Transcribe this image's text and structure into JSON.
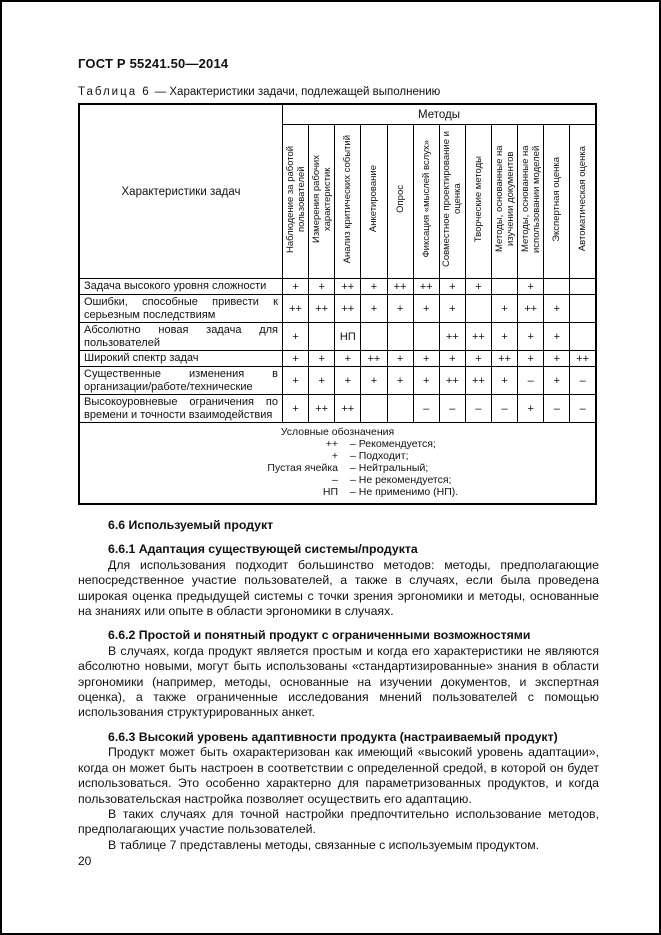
{
  "page": {
    "header": "ГОСТ Р 55241.50—2014",
    "page_number": "20"
  },
  "table": {
    "caption_label": "Таблица 6",
    "caption_rest": "— Характеристики задачи, подлежащей выполнению",
    "corner_header": "Характеристики задач",
    "methods_header": "Методы",
    "columns": [
      "Наблюдение за работой пользователей",
      "Измерения рабочих характеристик",
      "Анализ критических событий",
      "Анкетирование",
      "Опрос",
      "Фиксация «мыслей вслух»",
      "Совместное проектирование и оценка",
      "Творческие методы",
      "Методы, основанные на изучении документов",
      "Методы, основанные на использовании моделей",
      "Экспертная оценка",
      "Автоматическая оценка"
    ],
    "rows": [
      {
        "label": "Задача высокого уровня сложности",
        "values": [
          "+",
          "+",
          "++",
          "+",
          "++",
          "++",
          "+",
          "+",
          "",
          "+",
          "",
          ""
        ]
      },
      {
        "label": "Ошибки, способные привести к серьезным последствиям",
        "values": [
          "++",
          "++",
          "++",
          "+",
          "+",
          "+",
          "+",
          "",
          "+",
          "++",
          "+",
          ""
        ]
      },
      {
        "label": "Абсолютно новая задача для пользователей",
        "values": [
          "+",
          "",
          "НП",
          "",
          "",
          "",
          "++",
          "++",
          "+",
          "+",
          "+",
          ""
        ]
      },
      {
        "label": "Широкий спектр задач",
        "values": [
          "+",
          "+",
          "+",
          "++",
          "+",
          "+",
          "+",
          "+",
          "++",
          "+",
          "+",
          "++"
        ]
      },
      {
        "label": "Существенные изменения в организации/работе/технические",
        "values": [
          "+",
          "+",
          "+",
          "+",
          "+",
          "+",
          "++",
          "++",
          "+",
          "–",
          "+",
          "–"
        ]
      },
      {
        "label": "Высокоуровневые ограничения по времени и точности взаимодействия",
        "values": [
          "+",
          "++",
          "++",
          "",
          "",
          "–",
          "–",
          "–",
          "–",
          "+",
          "–",
          "–"
        ]
      }
    ],
    "legend": {
      "title": "Условные обозначения",
      "items": [
        {
          "symbol": "++",
          "meaning": "– Рекомендуется;"
        },
        {
          "symbol": "+",
          "meaning": "– Подходит;"
        },
        {
          "symbol": "Пустая ячейка",
          "meaning": "– Нейтральный;"
        },
        {
          "symbol": "–",
          "meaning": "– Не рекомендуется;"
        },
        {
          "symbol": "НП",
          "meaning": "– Не применимо (НП)."
        }
      ]
    }
  },
  "sections": [
    {
      "heading": "6.6 Используемый продукт",
      "paragraphs": []
    },
    {
      "heading": "6.6.1 Адаптация существующей системы/продукта",
      "paragraphs": [
        "Для использования подходит большинство методов: методы, предполагающие непосредственное участие пользователей, а также в случаях, если была проведена широкая оценка предыдущей системы с точки зрения эргономики и методы, основанные на знаниях или опыте в области эргономики в случаях."
      ]
    },
    {
      "heading": "6.6.2 Простой и понятный продукт с ограниченными возможностями",
      "paragraphs": [
        "В случаях, когда продукт является простым и когда его характеристики не являются абсолютно новыми, могут быть использованы «стандартизированные» знания в области эргономики (например, методы, основанные на изучении документов, и экспертная оценка), а также ограниченные исследования мнений пользователей с помощью использования структурированных анкет."
      ]
    },
    {
      "heading": "6.6.3 Высокий уровень адаптивности продукта (настраиваемый продукт)",
      "paragraphs": [
        "Продукт может быть охарактеризован как имеющий «высокий уровень адаптации», когда он может быть настроен в соответствии с определенной средой, в которой он будет использоваться. Это особенно характерно для параметризованных продуктов, и когда пользовательская настройка позволяет осуществить его адаптацию.",
        "В таких случаях для точной настройки предпочтительно использование методов, предполагающих участие пользователей.",
        "В таблице 7 представлены методы, связанные с используемым продуктом."
      ]
    }
  ]
}
